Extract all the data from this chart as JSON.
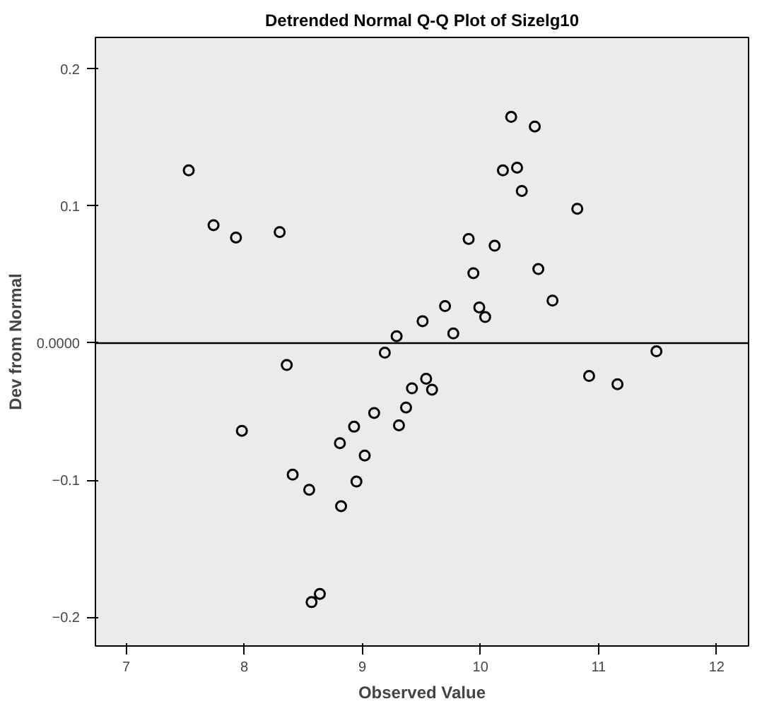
{
  "chart_data": {
    "type": "scatter",
    "title": "Detrended Normal Q-Q Plot of Sizelg10",
    "xlabel": "Observed Value",
    "ylabel": "Dev from Normal",
    "x": [
      7.53,
      7.74,
      7.93,
      8.3,
      8.36,
      7.98,
      8.41,
      8.55,
      8.82,
      8.81,
      8.93,
      9.02,
      8.95,
      8.57,
      8.64,
      9.1,
      9.19,
      9.42,
      9.54,
      9.59,
      9.37,
      9.31,
      10.92,
      11.16,
      11.49,
      10.26,
      10.46,
      10.19,
      10.31,
      10.35,
      10.82,
      9.9,
      10.12,
      9.94,
      10.49,
      10.61,
      9.7,
      9.99,
      10.04,
      9.51,
      9.29,
      9.77
    ],
    "series": [
      {
        "color": "#000000",
        "values": [
          0.126,
          0.086,
          0.077,
          0.081,
          -0.016,
          -0.064,
          -0.096,
          -0.107,
          -0.119,
          -0.073,
          -0.061,
          -0.082,
          -0.101,
          -0.189,
          -0.183,
          -0.051,
          -0.007,
          -0.033,
          -0.026,
          -0.034,
          -0.047,
          -0.06,
          -0.024,
          -0.03,
          -0.006,
          0.165,
          0.158,
          0.126,
          0.128,
          0.111,
          0.098,
          0.076,
          0.071,
          0.051,
          0.054,
          0.031,
          0.027,
          0.026,
          0.019,
          0.016,
          0.005,
          0.007
        ]
      }
    ],
    "xlim": [
      6.74,
      12.27
    ],
    "ylim": [
      -0.221,
      0.223
    ],
    "xticks": [
      7,
      8,
      9,
      10,
      11,
      12
    ],
    "yticks": [
      -0.2,
      -0.1,
      {
        "value": 0,
        "label": "0.0000"
      },
      0.1,
      0.2
    ],
    "ref_lines": [
      {
        "axis": "y",
        "value": 0,
        "color": "#000000"
      }
    ],
    "marker": "circle",
    "grid": false
  }
}
